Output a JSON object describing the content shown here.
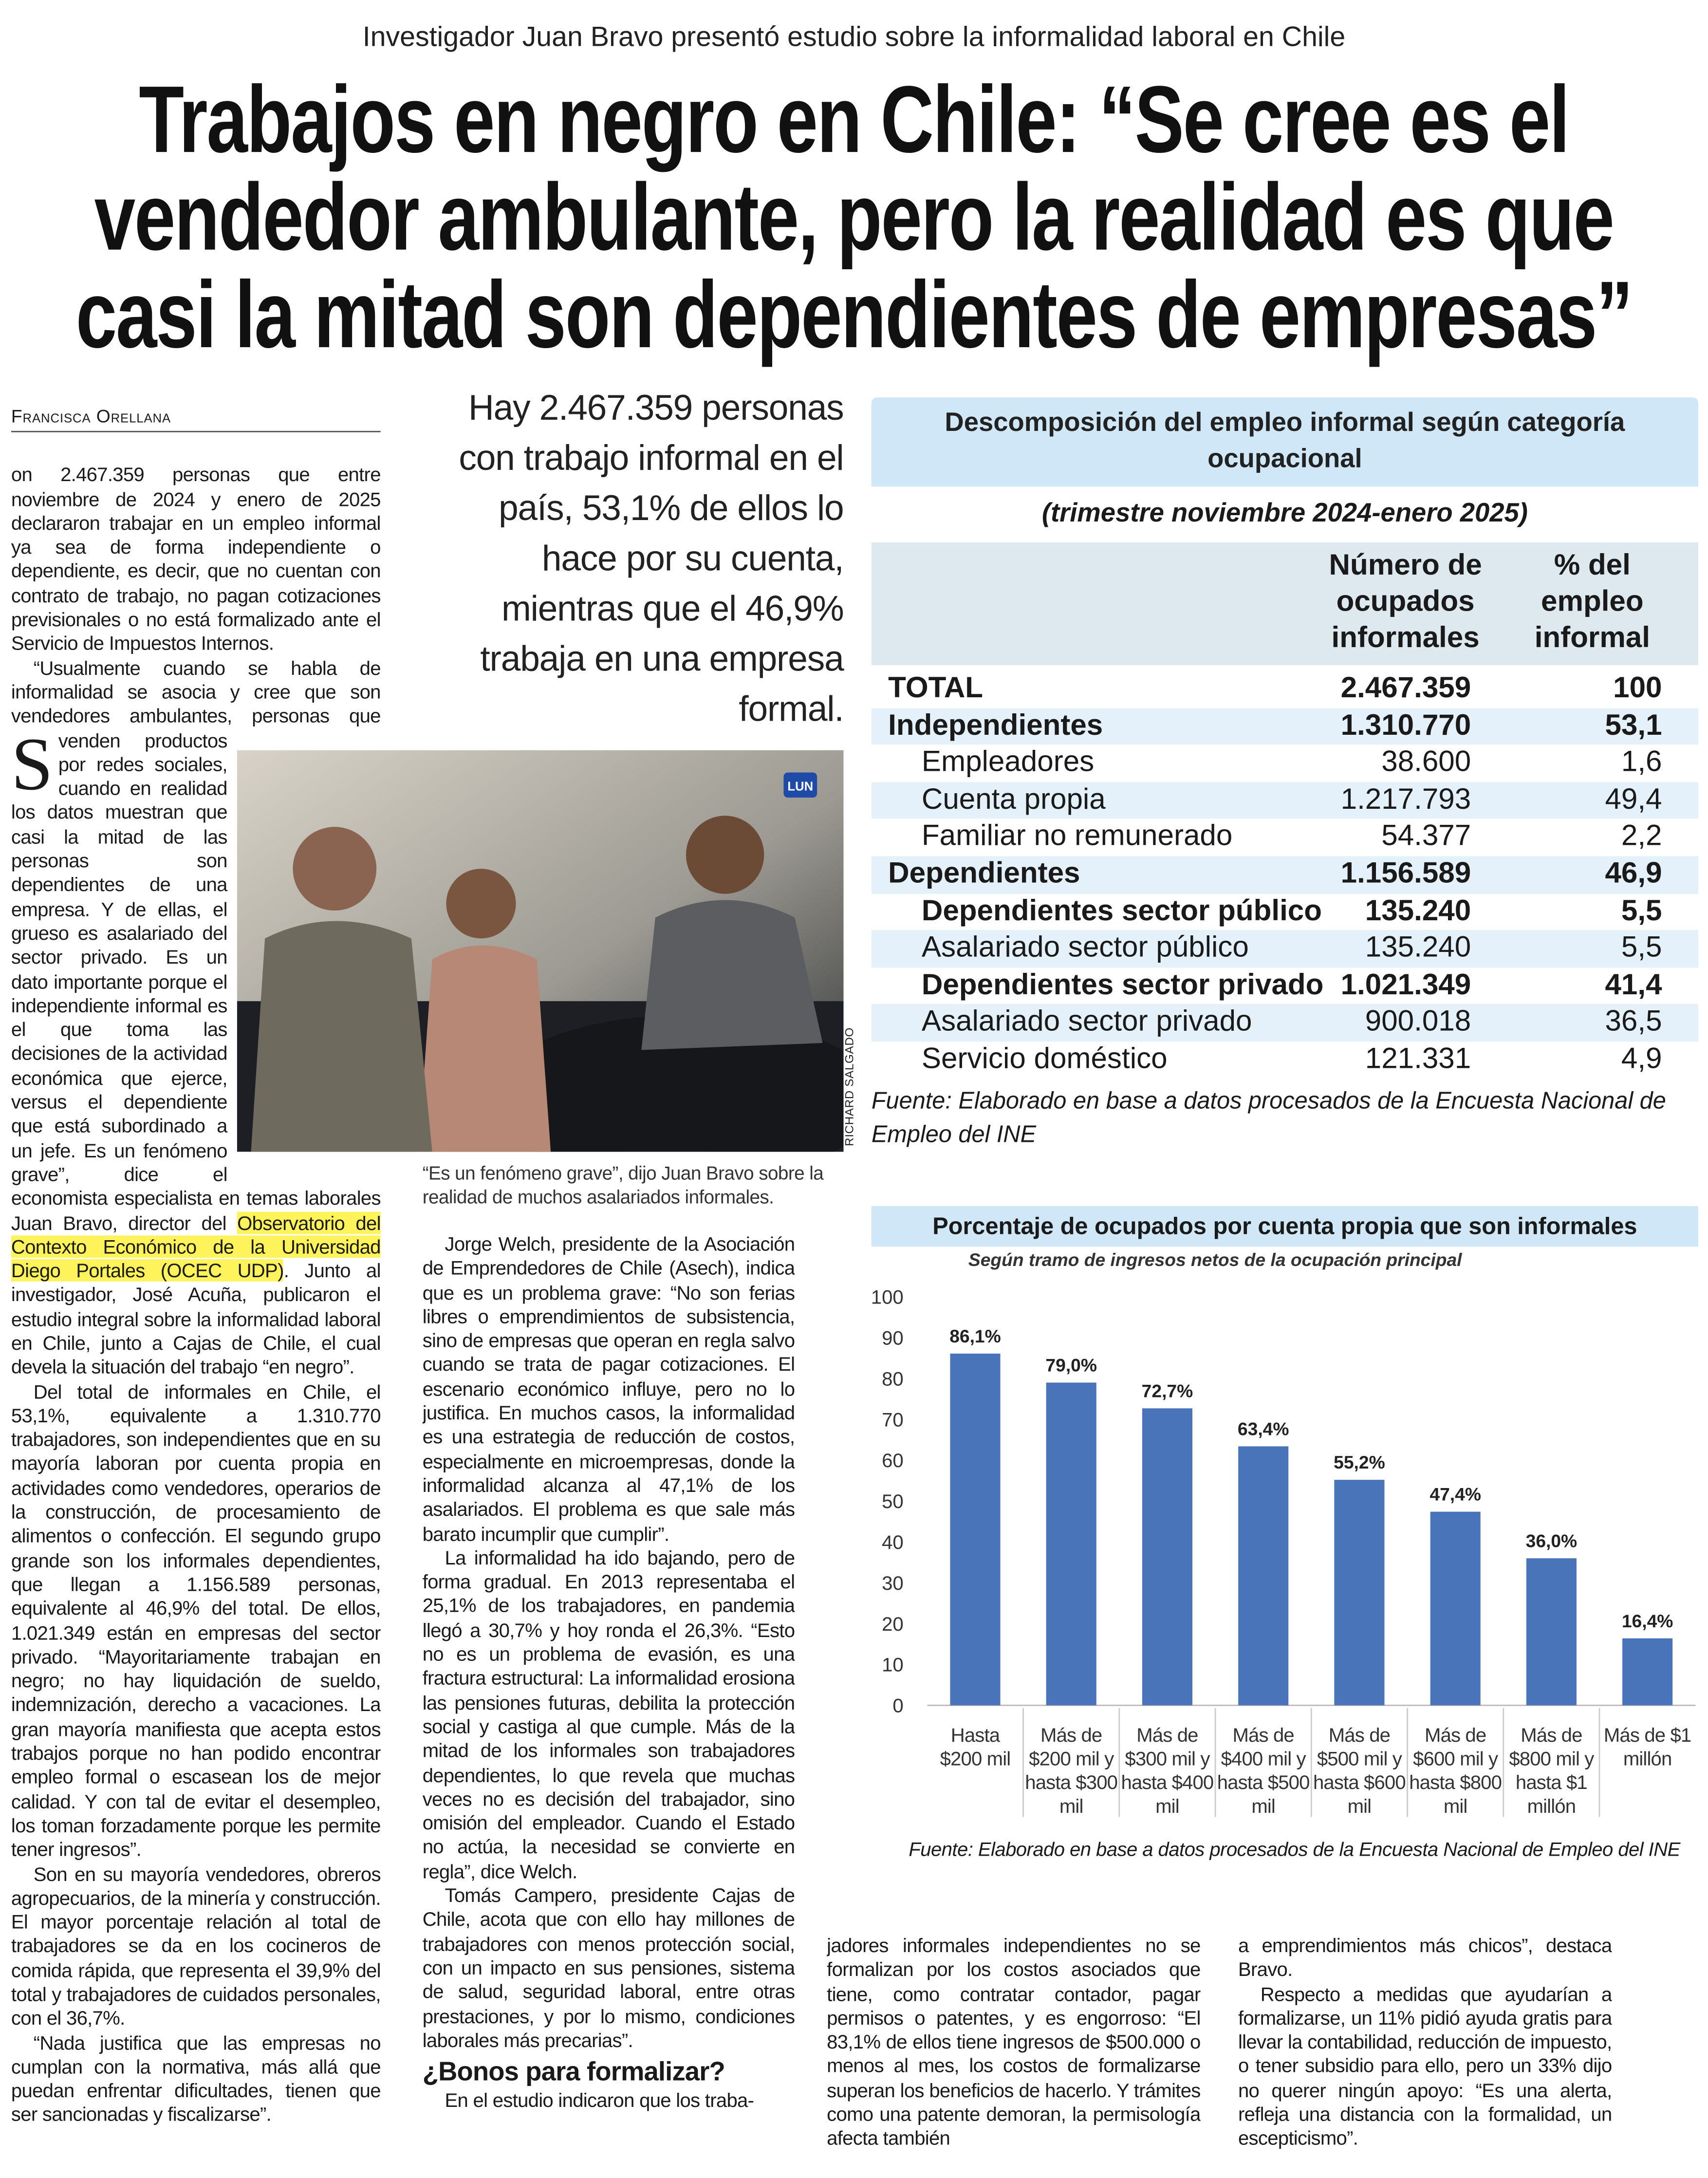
{
  "header": {
    "kicker": "Investigador Juan Bravo presentó estudio sobre la informalidad laboral en Chile",
    "headline": [
      "Trabajos en negro en Chile: “Se cree es el",
      "vendedor ambulante, pero la realidad es que",
      "casi la mitad son dependientes de empresas”"
    ]
  },
  "byline": "Francisca Orellana",
  "pull_quote": "Hay 2.467.359 personas con trabajo informal en el país, 53,1% de ellos lo hace por su cuenta, mientras que el 46,9% trabaja en una empresa formal.",
  "photo": {
    "logo": "LUN",
    "credit": "RICHARD SALGADO",
    "caption": "“Es un fenómeno grave”, dijo Juan Bravo sobre la realidad de muchos asalariados informales."
  },
  "article": {
    "column_1": [
      "Son 2.467.359 personas que entre noviembre de 2024 y enero de 2025 declararon trabajar en un empleo informal ya sea de forma independiente o dependiente, es decir, que no cuentan con contrato de trabajo, no pagan cotizaciones previsionales o no está formalizado ante el Servicio de Impuestos Internos.",
      [
        "“Usualmente cuando se habla de informalidad se asocia y cree que son vendedores ambulantes, personas que venden productos por redes sociales, cuando en realidad los datos muestran que casi la mitad de las personas son dependientes de una empresa. Y de ellas, el grueso es asalariado del sector privado. Es un dato importante porque el independiente informal es el que toma las decisiones de la actividad económica que ejerce, versus el dependiente que está subordinado a un jefe. Es un fenómeno grave”, dice el economista especialista en temas laborales Juan Bravo, director del ",
        "Observatorio del Contexto Económico de la Universidad Diego Portales (OCEC UDP)",
        ". Junto al investigador, José Acuña, publicaron el estudio integral sobre la informalidad laboral en Chile, junto a Cajas de Chile, el cual devela la situación del trabajo “en negro”."
      ],
      "Del total de informales en Chile, el 53,1%, equivalente a 1.310.770 trabajadores, son independientes que en su mayoría laboran por cuenta propia en actividades como vendedores, operarios de la construcción, de procesamiento de alimentos o confección. El segundo grupo grande son los informales dependientes, que llegan a 1.156.589 personas, equivalente al 46,9% del total. De ellos, 1.021.349 están en empresas del sector privado. “Mayoritariamente trabajan en negro; no hay liquidación de sueldo, indemnización, derecho a vacaciones. La gran mayoría manifiesta que acepta estos trabajos porque no han podido encontrar empleo formal o escasean los de mejor calidad. Y con tal de evitar el desempleo, los toman forzadamente porque les permite tener ingresos”.",
      "Son en su mayoría vendedores, obreros agropecuarios, de la minería y construcción. El mayor porcentaje relación al total de trabajadores se da en los cocineros de comida rápida, que representa el 39,9% del total y trabajadores de cuidados personales, con el 36,7%.",
      "“Nada justifica que las empresas no cumplan con la normativa, más allá que puedan enfrentar dificultades, tienen que ser sancionadas y fiscalizarse”."
    ],
    "column_2": [
      "Jorge Welch, presidente de la Asociación de Emprendedores de Chile (Asech), indica que es un problema grave: “No son ferias libres o emprendimientos de subsistencia, sino de empresas que operan en regla salvo cuando se trata de pagar cotizaciones. El escenario económico influye, pero no lo justifica. En muchos casos, la informalidad es una estrategia de reducción de costos, especialmente en microempresas, donde la informalidad alcanza al 47,1% de los asalariados. El problema es que sale más barato incumplir que cumplir”.",
      "La informalidad ha ido bajando, pero de forma gradual. En 2013 representaba el 25,1% de los trabajadores, en pandemia llegó a 30,7% y hoy ronda el 26,3%. “Esto no es un problema de evasión, es una fractura estructural: La informalidad erosiona las pensiones futuras, debilita la protección social y castiga al que cumple. Más de la mitad de los informales son trabajadores dependientes, lo que revela que muchas veces no es decisión del trabajador, sino omisión del empleador. Cuando el Estado no actúa, la necesidad se convierte en regla”, dice Welch.",
      "Tomás Campero, presidente Cajas de Chile, acota que con ello hay millones de trabajadores con menos protección social, con un impacto en sus pensiones, sistema de salud, seguridad laboral, entre otras prestaciones, y por lo mismo, condiciones laborales más precarias”."
    ],
    "subhead": "¿Bonos para formalizar?",
    "column_2_end": "En el estudio indicaron que los traba-",
    "column_3": "jadores informales independientes no se formalizan por los costos asociados que tiene, como contratar contador, pagar permisos o patentes, y es engorroso: “El 83,1% de ellos tiene ingresos de $500.000 o menos al mes, los costos de formalizarse superan los beneficios de hacerlo. Y trámites como una patente demoran, la permisología afecta también",
    "column_4": [
      "a emprendimientos más chicos”, destaca Bravo.",
      "Respecto a medidas que ayudarían a formalizarse, un 11% pidió ayuda gratis para llevar la contabilidad, reducción de impuesto, o tener subsidio para ello, pero un 33% dijo no querer ningún apoyo: “Es una alerta, refleja una distancia con la formalidad, un escepticismo”."
    ]
  },
  "table": {
    "title": "Descomposición del empleo informal según categoría ocupacional",
    "period": "(trimestre noviembre 2024-enero 2025)",
    "columns": [
      "Número de ocupados informales",
      "% del empleo informal"
    ],
    "rows": [
      [
        "TOTAL",
        "2.467.359",
        "100"
      ],
      [
        "Independientes",
        "1.310.770",
        "53,1"
      ],
      [
        "Empleadores",
        "38.600",
        "1,6"
      ],
      [
        "Cuenta propia",
        "1.217.793",
        "49,4"
      ],
      [
        "Familiar no remunerado",
        "54.377",
        "2,2"
      ],
      [
        "Dependientes",
        "1.156.589",
        "46,9"
      ],
      [
        "Dependientes sector público",
        "135.240",
        "5,5"
      ],
      [
        "Asalariado sector público",
        "135.240",
        "5,5"
      ],
      [
        "Dependientes sector privado",
        "1.021.349",
        "41,4"
      ],
      [
        "Asalariado sector privado",
        "900.018",
        "36,5"
      ],
      [
        "Servicio doméstico",
        "121.331",
        "4,9"
      ]
    ],
    "source": "Fuente: Elaborado en base a datos procesados de la Encuesta Nacional de Empleo del INE"
  },
  "chart_data": {
    "type": "bar",
    "title": "Porcentaje de ocupados por cuenta propia que son informales",
    "subtitle": "Según tramo de ingresos netos de la ocupación principal",
    "categories": [
      "Hasta $200 mil",
      "Más de $200 mil y hasta $300 mil",
      "Más de $300 mil y hasta $400 mil",
      "Más de $400 mil y hasta $500 mil",
      "Más de $500 mil y hasta $600 mil",
      "Más de $600 mil y hasta $800 mil",
      "Más de $800 mil y hasta $1 millón",
      "Más de $1 millón"
    ],
    "values": [
      86.1,
      79.0,
      72.7,
      63.4,
      55.2,
      47.4,
      36.0,
      16.4
    ],
    "value_labels": [
      "86,1%",
      "79,0%",
      "72,7%",
      "63,4%",
      "55,2%",
      "47,4%",
      "36,0%",
      "16,4%"
    ],
    "color": "#4a74ba",
    "ylim": [
      0,
      100
    ],
    "yticks": [
      0,
      10,
      20,
      30,
      40,
      50,
      60,
      70,
      80,
      90,
      100
    ],
    "grid": false,
    "source": "Fuente: Elaborado en base a datos procesados de la Encuesta Nacional de Empleo del INE"
  }
}
